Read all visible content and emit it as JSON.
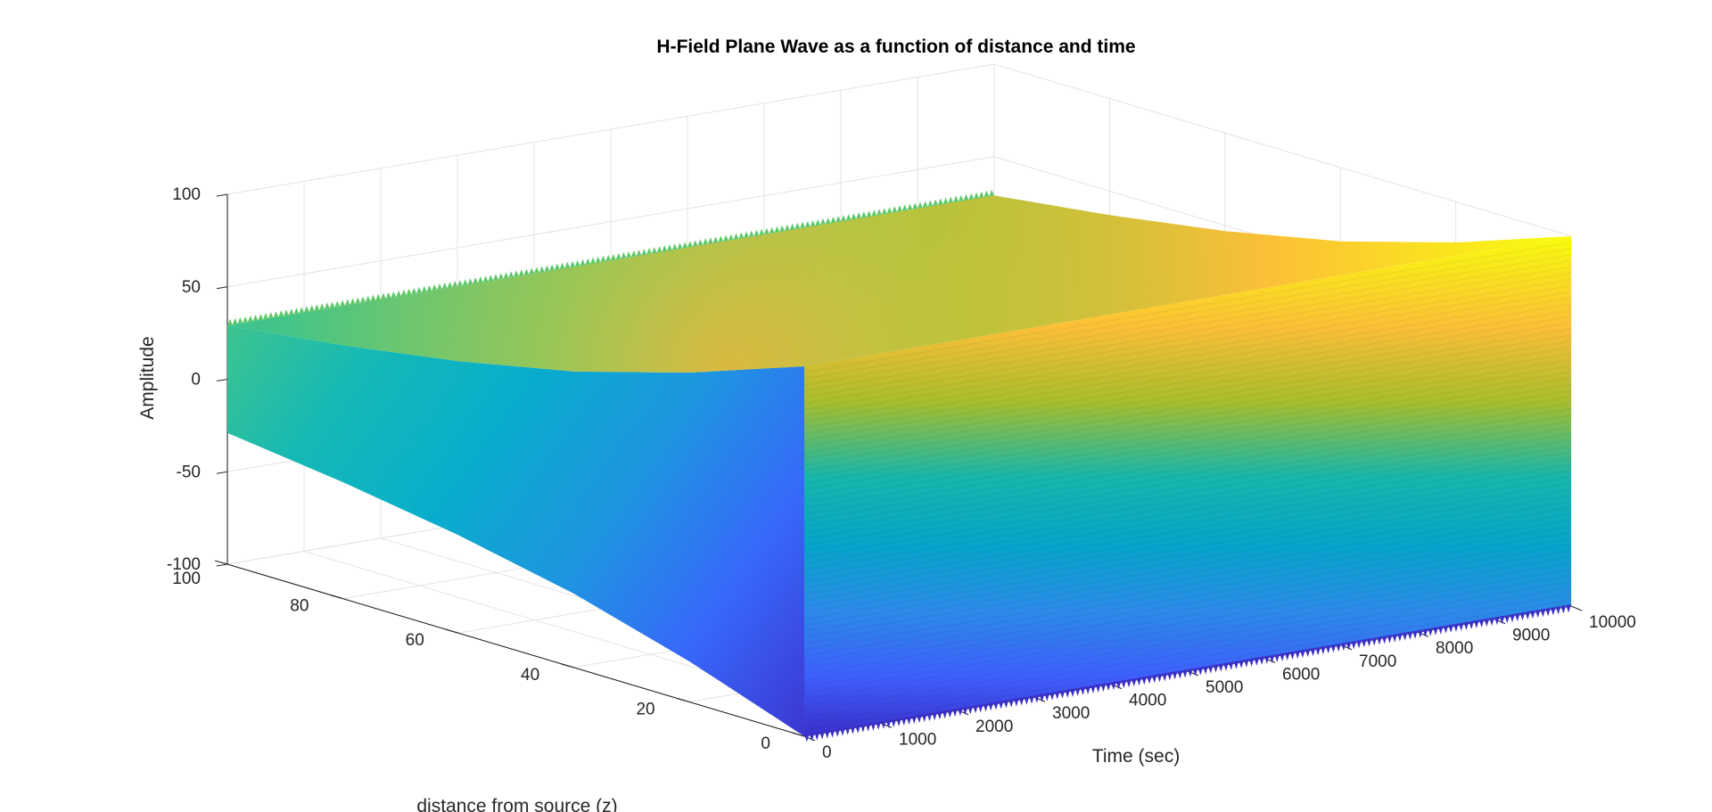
{
  "chart_data": {
    "type": "surface",
    "title": "H-Field Plane Wave as a function of distance and time",
    "xlabel": "Time (sec)",
    "ylabel": "distance from source (z)",
    "zlabel": "Amplitude",
    "xlim": [
      0,
      10000
    ],
    "ylim": [
      0,
      100
    ],
    "zlim": [
      -100,
      100
    ],
    "x_ticks": [
      0,
      1000,
      2000,
      3000,
      4000,
      5000,
      6000,
      7000,
      8000,
      9000,
      10000
    ],
    "y_ticks": [
      0,
      20,
      40,
      60,
      80,
      100
    ],
    "z_ticks": [
      -100,
      -50,
      0,
      50,
      100
    ],
    "grid": true,
    "colormap": "parula",
    "surface": {
      "time_range": [
        0,
        10000
      ],
      "distance_range": [
        0,
        100
      ],
      "amplitude_at_distance_0": [
        -100,
        100
      ],
      "amplitude_at_distance_100": [
        -30,
        30
      ],
      "description_values": [
        {
          "distance": 0,
          "max_amplitude": 100
        },
        {
          "distance": 20,
          "max_amplitude": 78
        },
        {
          "distance": 40,
          "max_amplitude": 60
        },
        {
          "distance": 60,
          "max_amplitude": 47
        },
        {
          "distance": 80,
          "max_amplitude": 37
        },
        {
          "distance": 100,
          "max_amplitude": 29
        }
      ]
    }
  }
}
